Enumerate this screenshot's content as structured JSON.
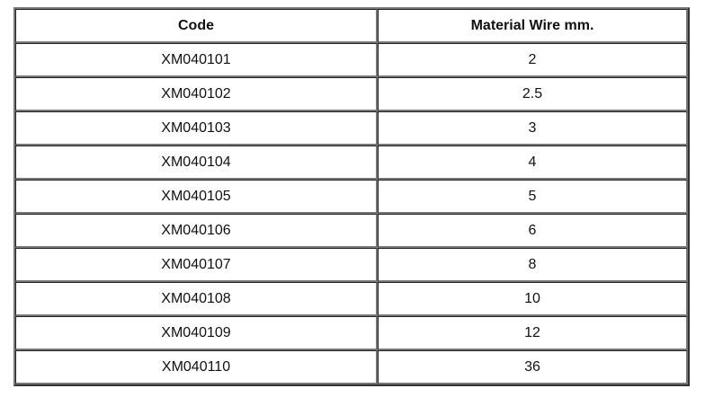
{
  "table": {
    "headers": [
      "Code",
      "Material Wire mm."
    ],
    "rows": [
      [
        "XM040101",
        "2"
      ],
      [
        "XM040102",
        "2.5"
      ],
      [
        "XM040103",
        "3"
      ],
      [
        "XM040104",
        "4"
      ],
      [
        "XM040105",
        "5"
      ],
      [
        "XM040106",
        "6"
      ],
      [
        "XM040107",
        "8"
      ],
      [
        "XM040108",
        "10"
      ],
      [
        "XM040109",
        "12"
      ],
      [
        "XM040110",
        "36"
      ]
    ]
  }
}
